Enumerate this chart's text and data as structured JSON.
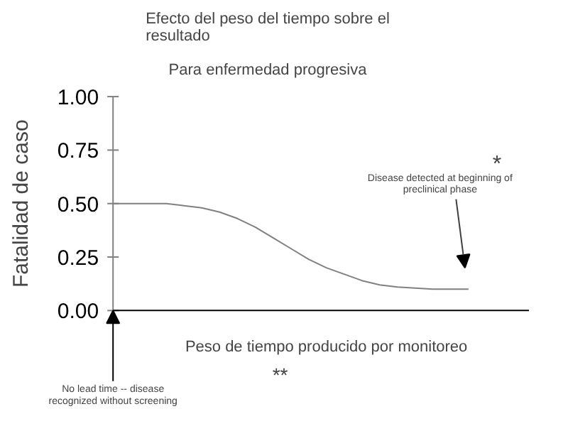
{
  "chart_data": {
    "type": "line",
    "title": "Efecto del peso del tiempo sobre el\nresultado",
    "subtitle": "Para enfermedad progresiva",
    "ylabel": "Fatalidad de caso",
    "xlabel": "Peso de tiempo producido por monitoreo",
    "categories": [
      null,
      null,
      null,
      null,
      null,
      null,
      null,
      null,
      null,
      null,
      null,
      null,
      null,
      null,
      null,
      null,
      null,
      null,
      null,
      null,
      null
    ],
    "series": [
      {
        "color": "#808080",
        "values": [
          0.5,
          0.5,
          0.5,
          0.5,
          0.49,
          0.48,
          0.46,
          0.43,
          0.39,
          0.34,
          0.29,
          0.24,
          0.2,
          0.17,
          0.14,
          0.12,
          0.11,
          0.105,
          0.1,
          0.1,
          0.1
        ]
      }
    ],
    "ylim": [
      0,
      1
    ],
    "yticks": [
      {
        "value": 0,
        "label": "0.00"
      },
      {
        "value": 0.25,
        "label": "0.25"
      },
      {
        "value": 0.5,
        "label": "0.50"
      },
      {
        "value": 0.75,
        "label": "0.75"
      },
      {
        "value": 1,
        "label": "1.00"
      }
    ],
    "annotations": [
      "Disease detected at beginning of\npreclinical phase",
      "*",
      "No lead time -- disease\nrecognized without screening",
      "**"
    ]
  }
}
